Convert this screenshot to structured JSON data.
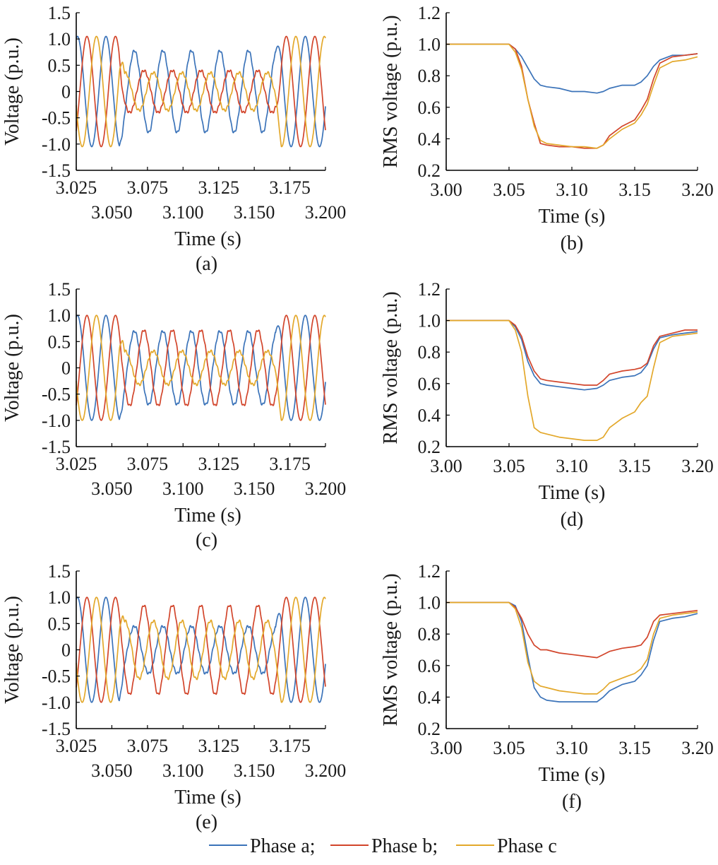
{
  "colors": {
    "phase_a": "#3b73b9",
    "phase_b": "#d2452b",
    "phase_c": "#e3a82b"
  },
  "legend": [
    {
      "label": "Phase a;",
      "color": "#3b73b9"
    },
    {
      "label": "Phase b;",
      "color": "#d2452b"
    },
    {
      "label": "Phase c",
      "color": "#e3a82b"
    }
  ],
  "chart_data": [
    {
      "id": "a",
      "type": "line",
      "caption": "(a)",
      "xlabel": "Time (s)",
      "ylabel": "Voltage (p.u.)",
      "xlim": [
        3.025,
        3.2
      ],
      "ylim": [
        -1.5,
        1.5
      ],
      "yticks": [
        "1.5",
        "1.0",
        "0.5",
        "0",
        "-0.5",
        "-1.0",
        "-1.5"
      ],
      "xticks_row1": [
        "3.025",
        "3.075",
        "3.125",
        "3.175"
      ],
      "xticks_row2": [
        "3.050",
        "3.100",
        "3.150",
        "3.200"
      ],
      "waveform": {
        "frequency_hz": 50,
        "fault_start_s": 3.055,
        "fault_end_s": 3.165,
        "pre_fault_amplitude": 1.05,
        "fault_amplitudes": [
          0.78,
          0.4,
          0.36
        ]
      },
      "series": [
        {
          "name": "Phase a"
        },
        {
          "name": "Phase b"
        },
        {
          "name": "Phase c"
        }
      ]
    },
    {
      "id": "b",
      "type": "line",
      "caption": "(b)",
      "xlabel": "Time (s)",
      "ylabel": "RMS voltage (p.u.)",
      "xlim": [
        3.0,
        3.2
      ],
      "ylim": [
        0.2,
        1.2
      ],
      "yticks": [
        "1.2",
        "1.0",
        "0.8",
        "0.6",
        "0.4",
        "0.2"
      ],
      "xticks": [
        "3.00",
        "3.05",
        "3.10",
        "3.15",
        "3.20"
      ],
      "x": [
        3.0,
        3.05,
        3.055,
        3.06,
        3.065,
        3.07,
        3.075,
        3.08,
        3.09,
        3.1,
        3.11,
        3.12,
        3.125,
        3.13,
        3.14,
        3.15,
        3.155,
        3.16,
        3.165,
        3.17,
        3.18,
        3.19,
        3.2
      ],
      "series": [
        {
          "name": "Phase a",
          "values": [
            1.0,
            1.0,
            0.97,
            0.92,
            0.85,
            0.78,
            0.74,
            0.73,
            0.72,
            0.7,
            0.7,
            0.69,
            0.7,
            0.72,
            0.74,
            0.74,
            0.76,
            0.8,
            0.86,
            0.9,
            0.93,
            0.93,
            0.94
          ]
        },
        {
          "name": "Phase b",
          "values": [
            1.0,
            1.0,
            0.97,
            0.86,
            0.65,
            0.5,
            0.37,
            0.36,
            0.35,
            0.35,
            0.34,
            0.34,
            0.36,
            0.42,
            0.48,
            0.52,
            0.58,
            0.65,
            0.78,
            0.88,
            0.92,
            0.93,
            0.94
          ]
        },
        {
          "name": "Phase c",
          "values": [
            1.0,
            1.0,
            0.95,
            0.84,
            0.65,
            0.48,
            0.39,
            0.37,
            0.36,
            0.35,
            0.35,
            0.34,
            0.36,
            0.4,
            0.46,
            0.5,
            0.55,
            0.62,
            0.74,
            0.85,
            0.89,
            0.9,
            0.92
          ]
        }
      ]
    },
    {
      "id": "c",
      "type": "line",
      "caption": "(c)",
      "xlabel": "Time (s)",
      "ylabel": "Voltage (p.u.)",
      "xlim": [
        3.025,
        3.2
      ],
      "ylim": [
        -1.5,
        1.5
      ],
      "yticks": [
        "1.5",
        "1.0",
        "0.5",
        "0",
        "-0.5",
        "-1.0",
        "-1.5"
      ],
      "xticks_row1": [
        "3.025",
        "3.075",
        "3.125",
        "3.175"
      ],
      "xticks_row2": [
        "3.050",
        "3.100",
        "3.150",
        "3.200"
      ],
      "waveform": {
        "frequency_hz": 50,
        "fault_start_s": 3.055,
        "fault_end_s": 3.165,
        "pre_fault_amplitude": 1.0,
        "fault_amplitudes": [
          0.7,
          0.72,
          0.32
        ]
      },
      "series": [
        {
          "name": "Phase a"
        },
        {
          "name": "Phase b"
        },
        {
          "name": "Phase c"
        }
      ]
    },
    {
      "id": "d",
      "type": "line",
      "caption": "(d)",
      "xlabel": "Time (s)",
      "ylabel": "RMS voltage (p.u.)",
      "xlim": [
        3.0,
        3.2
      ],
      "ylim": [
        0.2,
        1.2
      ],
      "yticks": [
        "1.2",
        "1.0",
        "0.8",
        "0.6",
        "0.4",
        "0.2"
      ],
      "xticks": [
        "3.00",
        "3.05",
        "3.10",
        "3.15",
        "3.20"
      ],
      "x": [
        3.0,
        3.05,
        3.055,
        3.06,
        3.065,
        3.07,
        3.075,
        3.08,
        3.09,
        3.1,
        3.11,
        3.12,
        3.125,
        3.13,
        3.14,
        3.15,
        3.155,
        3.16,
        3.165,
        3.17,
        3.18,
        3.19,
        3.2
      ],
      "series": [
        {
          "name": "Phase a",
          "values": [
            1.0,
            1.0,
            0.96,
            0.88,
            0.74,
            0.65,
            0.6,
            0.59,
            0.58,
            0.57,
            0.56,
            0.57,
            0.59,
            0.62,
            0.64,
            0.65,
            0.67,
            0.72,
            0.82,
            0.89,
            0.91,
            0.92,
            0.93
          ]
        },
        {
          "name": "Phase b",
          "values": [
            1.0,
            1.0,
            0.97,
            0.9,
            0.77,
            0.68,
            0.63,
            0.62,
            0.61,
            0.6,
            0.59,
            0.59,
            0.62,
            0.66,
            0.68,
            0.69,
            0.7,
            0.73,
            0.84,
            0.9,
            0.92,
            0.94,
            0.94
          ]
        },
        {
          "name": "Phase c",
          "values": [
            1.0,
            1.0,
            0.94,
            0.8,
            0.52,
            0.32,
            0.29,
            0.28,
            0.26,
            0.25,
            0.24,
            0.24,
            0.26,
            0.32,
            0.38,
            0.42,
            0.48,
            0.52,
            0.7,
            0.86,
            0.9,
            0.91,
            0.92
          ]
        }
      ]
    },
    {
      "id": "e",
      "type": "line",
      "caption": "(e)",
      "xlabel": "Time (s)",
      "ylabel": "Voltage (p.u.)",
      "xlim": [
        3.025,
        3.2
      ],
      "ylim": [
        -1.5,
        1.5
      ],
      "yticks": [
        "1.5",
        "1.0",
        "0.5",
        "0",
        "-0.5",
        "-1.0",
        "-1.5"
      ],
      "xticks_row1": [
        "3.025",
        "3.075",
        "3.125",
        "3.175"
      ],
      "xticks_row2": [
        "3.050",
        "3.100",
        "3.150",
        "3.200"
      ],
      "waveform": {
        "frequency_hz": 50,
        "fault_start_s": 3.055,
        "fault_end_s": 3.165,
        "pre_fault_amplitude": 1.0,
        "fault_amplitudes": [
          0.45,
          0.85,
          0.55
        ]
      },
      "series": [
        {
          "name": "Phase a"
        },
        {
          "name": "Phase b"
        },
        {
          "name": "Phase c"
        }
      ]
    },
    {
      "id": "f",
      "type": "line",
      "caption": "(f)",
      "xlabel": "Time (s)",
      "ylabel": "RMS voltage (p.u.)",
      "xlim": [
        3.0,
        3.2
      ],
      "ylim": [
        0.2,
        1.2
      ],
      "yticks": [
        "1.2",
        "1.0",
        "0.8",
        "0.6",
        "0.4",
        "0.2"
      ],
      "xticks": [
        "3.00",
        "3.05",
        "3.10",
        "3.15",
        "3.20"
      ],
      "x": [
        3.0,
        3.05,
        3.055,
        3.06,
        3.065,
        3.07,
        3.075,
        3.08,
        3.09,
        3.1,
        3.11,
        3.12,
        3.125,
        3.13,
        3.14,
        3.15,
        3.155,
        3.16,
        3.165,
        3.17,
        3.18,
        3.19,
        3.2
      ],
      "series": [
        {
          "name": "Phase a",
          "values": [
            1.0,
            1.0,
            0.98,
            0.88,
            0.66,
            0.46,
            0.4,
            0.38,
            0.37,
            0.37,
            0.37,
            0.37,
            0.4,
            0.44,
            0.48,
            0.5,
            0.54,
            0.6,
            0.76,
            0.88,
            0.9,
            0.91,
            0.93
          ]
        },
        {
          "name": "Phase b",
          "values": [
            1.0,
            1.0,
            0.97,
            0.9,
            0.8,
            0.73,
            0.7,
            0.7,
            0.68,
            0.67,
            0.66,
            0.65,
            0.67,
            0.69,
            0.71,
            0.72,
            0.73,
            0.78,
            0.88,
            0.92,
            0.93,
            0.94,
            0.95
          ]
        },
        {
          "name": "Phase c",
          "values": [
            1.0,
            1.0,
            0.96,
            0.84,
            0.62,
            0.5,
            0.47,
            0.46,
            0.44,
            0.43,
            0.42,
            0.42,
            0.45,
            0.49,
            0.52,
            0.55,
            0.58,
            0.64,
            0.8,
            0.9,
            0.92,
            0.93,
            0.94
          ]
        }
      ]
    }
  ]
}
